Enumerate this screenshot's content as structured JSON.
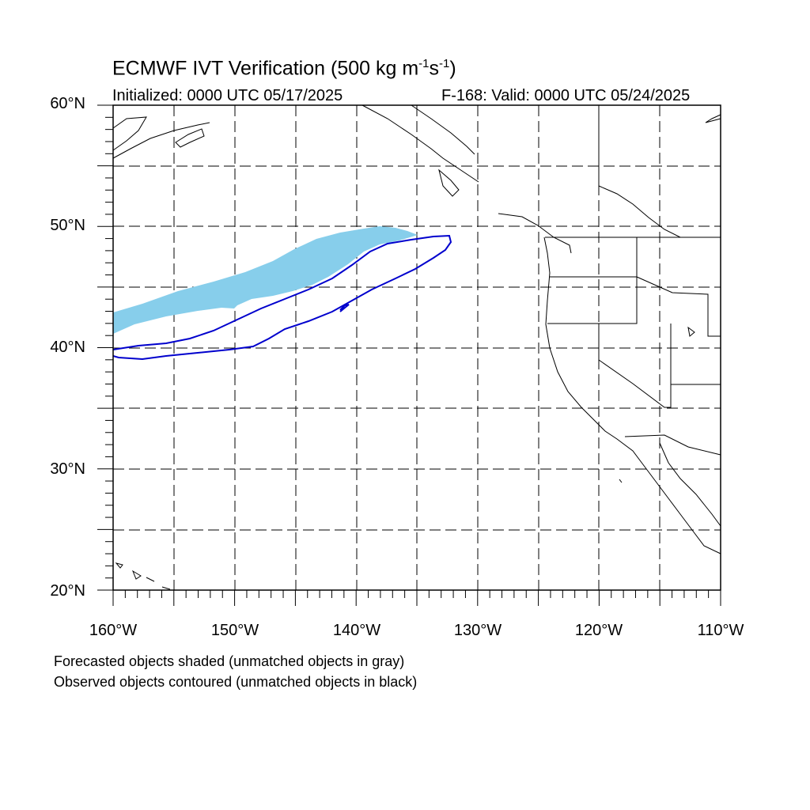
{
  "title": {
    "main": "ECMWF IVT Verification (500 kg m",
    "sup1": "-1",
    "mid": "s",
    "sup2": "-1",
    "end": ")"
  },
  "initialized": "Initialized: 0000 UTC 05/17/2025",
  "valid": "F-168: Valid: 0000 UTC 05/24/2025",
  "lat_labels": [
    "60°N",
    "50°N",
    "40°N",
    "30°N",
    "20°N"
  ],
  "lon_labels": [
    "160°W",
    "150°W",
    "140°W",
    "130°W",
    "120°W",
    "110°W"
  ],
  "notes": [
    "Forecasted objects shaded (unmatched objects in gray)",
    "Observed objects contoured (unmatched objects in black)"
  ],
  "colors": {
    "forecast_fill": "#87ceeb",
    "observed_contour": "#0000cd",
    "grid": "#000000",
    "coast": "#000000"
  },
  "map": {
    "projection": "cylindrical equidistant",
    "lon_range": [
      -160,
      -110
    ],
    "lat_range": [
      20,
      60
    ],
    "grid_lines": "dashed every 5 degrees"
  }
}
